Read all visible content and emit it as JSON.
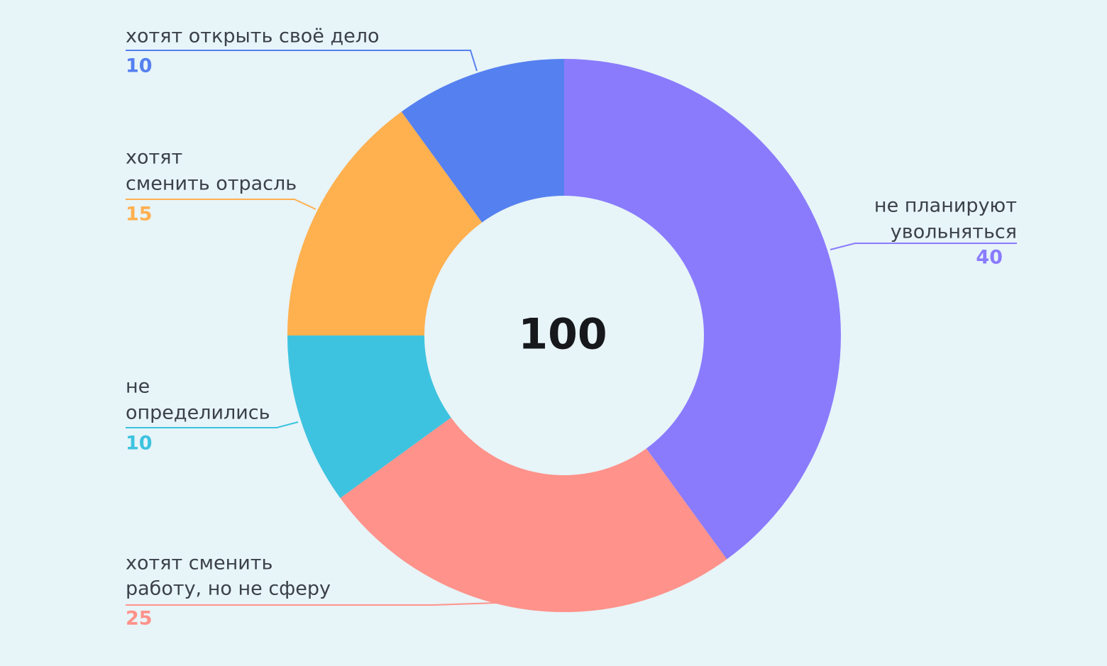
{
  "chart_data": {
    "type": "donut",
    "categories": [
      [
        "не планируют",
        "увольняться"
      ],
      [
        "хотят сменить",
        "работу, но не сферу"
      ],
      [
        "не",
        "определились"
      ],
      [
        "хотят",
        "сменить отрасль"
      ],
      [
        "хотят открыть своё дело"
      ]
    ],
    "values": [
      40,
      25,
      10,
      15,
      10
    ],
    "colors": [
      "#8a7bfd",
      "#ff928a",
      "#3dc3e0",
      "#ffb04f",
      "#5580f0"
    ],
    "total": 100
  }
}
